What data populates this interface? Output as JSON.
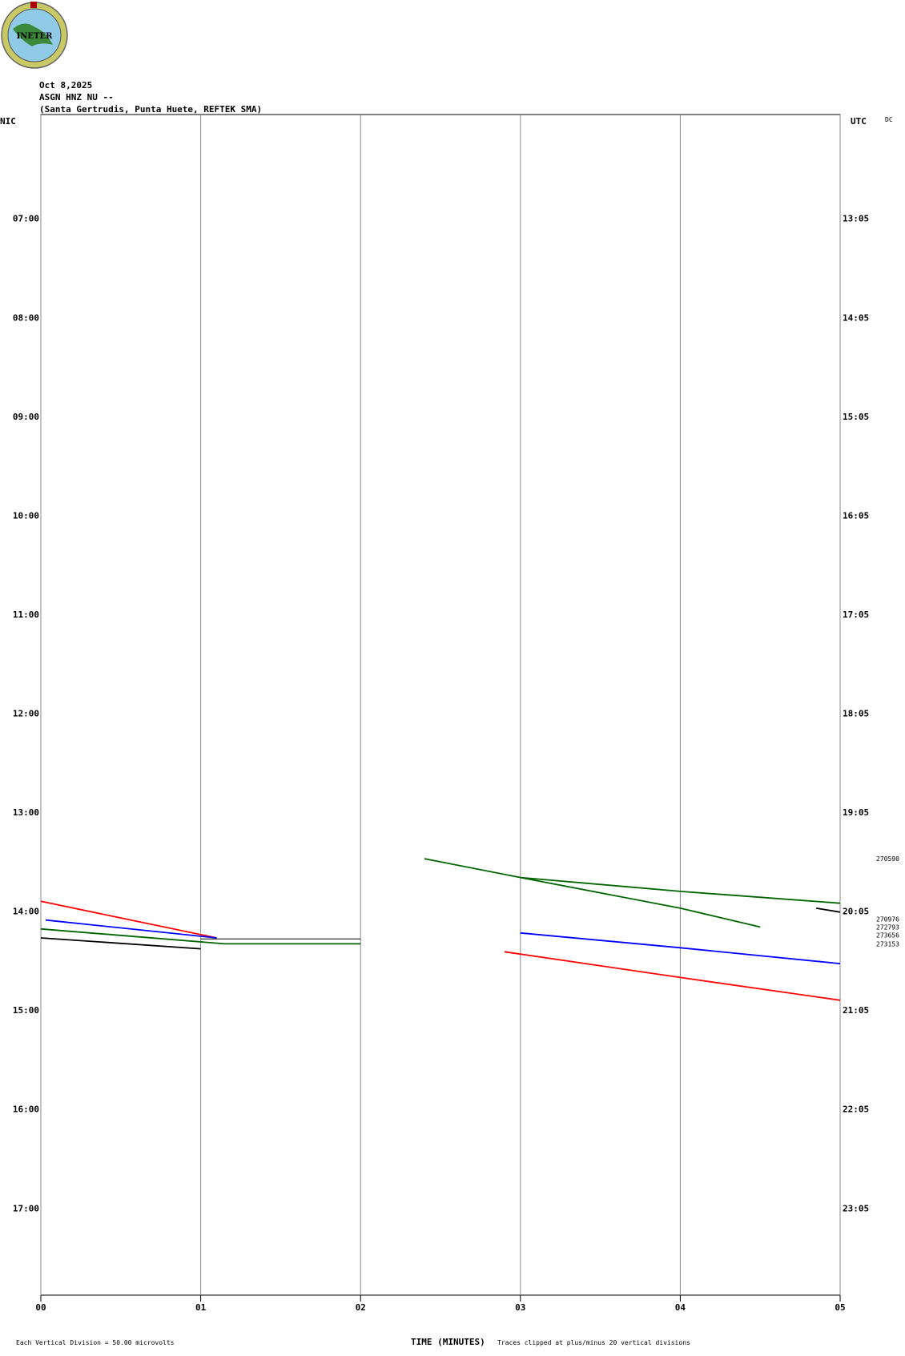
{
  "logo_text": "INETER",
  "chart_data": {
    "type": "helicorder",
    "title": "Oct 8,2025",
    "subtitle": "ASGN HNZ NU --",
    "station": "(Santa Gertrudis, Punta Huete, REFTEK SMA)",
    "left_axis_label": "NIC",
    "right_axis_label": "UTC",
    "corner_label": "DC",
    "x_label": "TIME (MINUTES)",
    "scale_note": "Each Vertical Division =   50.00 microvolts",
    "clip_note": "Traces clipped at plus/minus 20 vertical divisions",
    "xlim": [
      0,
      5
    ],
    "xticks": [
      {
        "value": 0,
        "label": "00"
      },
      {
        "value": 1,
        "label": "01"
      },
      {
        "value": 2,
        "label": "02"
      },
      {
        "value": 3,
        "label": "03"
      },
      {
        "value": 4,
        "label": "04"
      },
      {
        "value": 5,
        "label": "05"
      }
    ],
    "ylim": [
      5.95,
      17.88
    ],
    "yticks": [
      {
        "value": 7,
        "label": "07:00"
      },
      {
        "value": 8,
        "label": "08:00"
      },
      {
        "value": 9,
        "label": "09:00"
      },
      {
        "value": 10,
        "label": "10:00"
      },
      {
        "value": 11,
        "label": "11:00"
      },
      {
        "value": 12,
        "label": "12:00"
      },
      {
        "value": 13,
        "label": "13:00"
      },
      {
        "value": 14,
        "label": "14:00"
      },
      {
        "value": 15,
        "label": "15:00"
      },
      {
        "value": 16,
        "label": "16:00"
      },
      {
        "value": 17,
        "label": "17:00"
      }
    ],
    "y2lim": [
      5.95,
      17.88
    ],
    "y2ticks": [
      {
        "value": 7,
        "label": "13:05"
      },
      {
        "value": 8,
        "label": "14:05"
      },
      {
        "value": 9,
        "label": "15:05"
      },
      {
        "value": 10,
        "label": "16:05"
      },
      {
        "value": 11,
        "label": "17:05"
      },
      {
        "value": 12,
        "label": "18:05"
      },
      {
        "value": 13,
        "label": "19:05"
      },
      {
        "value": 14,
        "label": "20:05"
      },
      {
        "value": 15,
        "label": "21:05"
      },
      {
        "value": 16,
        "label": "22:05"
      },
      {
        "value": 17,
        "label": "23:05"
      }
    ],
    "grid": true,
    "side_values": [
      {
        "value": 13.47,
        "label": "270590"
      },
      {
        "value": 14.08,
        "label": "270976"
      },
      {
        "value": 14.16,
        "label": "272793"
      },
      {
        "value": 14.24,
        "label": "273656"
      },
      {
        "value": 14.33,
        "label": "273153"
      }
    ],
    "series": [
      {
        "color": "#ff0000",
        "x": [
          0,
          1.1
        ],
        "values": [
          13.9,
          14.27
        ]
      },
      {
        "color": "#0000ff",
        "x": [
          0.03,
          1.1
        ],
        "values": [
          14.09,
          14.27
        ]
      },
      {
        "color": "#006400",
        "x": [
          0,
          1.15,
          2
        ],
        "values": [
          14.18,
          14.33,
          14.33
        ]
      },
      {
        "color": "#000000",
        "x": [
          0,
          1
        ],
        "values": [
          14.27,
          14.38
        ]
      },
      {
        "color": "#000000",
        "x": [
          1,
          2
        ],
        "values": [
          14.28,
          14.28
        ]
      },
      {
        "color": "#006400",
        "x": [
          2.4,
          3,
          4,
          5
        ],
        "values": [
          13.47,
          13.66,
          13.8,
          13.92
        ]
      },
      {
        "color": "#006400",
        "x": [
          3,
          4,
          4.5
        ],
        "values": [
          13.66,
          13.97,
          14.16
        ]
      },
      {
        "color": "#000000",
        "x": [
          4.85,
          5
        ],
        "values": [
          13.97,
          14.01
        ]
      },
      {
        "color": "#0000ff",
        "x": [
          3,
          4,
          5
        ],
        "values": [
          14.22,
          14.37,
          14.53
        ]
      },
      {
        "color": "#ff0000",
        "x": [
          2.9,
          4,
          5
        ],
        "values": [
          14.41,
          14.67,
          14.9
        ]
      }
    ]
  }
}
